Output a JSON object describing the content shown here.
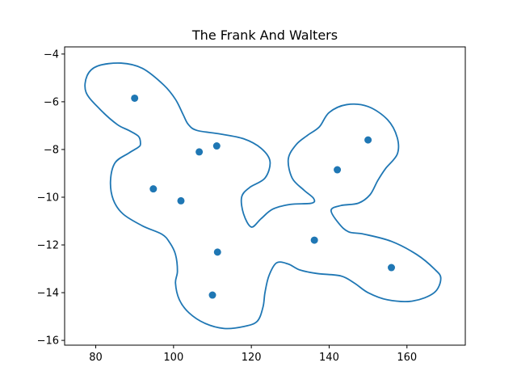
{
  "chart_data": {
    "type": "scatter",
    "title": "The Frank And Walters",
    "xlabel": "",
    "ylabel": "",
    "xlim": [
      72,
      175
    ],
    "ylim": [
      -16.2,
      -3.7
    ],
    "xticks": [
      80,
      100,
      120,
      140,
      160
    ],
    "yticks": [
      -16,
      -14,
      -12,
      -10,
      -8,
      -6,
      -4
    ],
    "xtick_labels": [
      "80",
      "100",
      "120",
      "140",
      "160"
    ],
    "ytick_labels": [
      "−16",
      "−14",
      "−12",
      "−10",
      "−8",
      "−6",
      "−4"
    ],
    "grid": false,
    "color": "#1f77b4",
    "points": [
      {
        "x": 90.0,
        "y": -5.85
      },
      {
        "x": 106.6,
        "y": -8.1
      },
      {
        "x": 111.1,
        "y": -7.85
      },
      {
        "x": 94.8,
        "y": -9.65
      },
      {
        "x": 101.9,
        "y": -10.15
      },
      {
        "x": 111.3,
        "y": -12.3
      },
      {
        "x": 110.0,
        "y": -14.1
      },
      {
        "x": 136.2,
        "y": -11.8
      },
      {
        "x": 142.1,
        "y": -8.85
      },
      {
        "x": 150.0,
        "y": -7.6
      },
      {
        "x": 156.0,
        "y": -12.95
      }
    ],
    "boundary": [
      [
        86.5,
        -4.38
      ],
      [
        92.0,
        -4.6
      ],
      [
        97.5,
        -5.3
      ],
      [
        100.5,
        -5.9
      ],
      [
        102.5,
        -6.55
      ],
      [
        103.8,
        -6.95
      ],
      [
        106.0,
        -7.2
      ],
      [
        112.0,
        -7.35
      ],
      [
        118.0,
        -7.55
      ],
      [
        122.5,
        -7.95
      ],
      [
        124.8,
        -8.5
      ],
      [
        123.5,
        -9.2
      ],
      [
        119.5,
        -9.6
      ],
      [
        117.5,
        -10.0
      ],
      [
        118.0,
        -10.7
      ],
      [
        120.0,
        -11.25
      ],
      [
        122.5,
        -10.9
      ],
      [
        125.5,
        -10.5
      ],
      [
        130.0,
        -10.3
      ],
      [
        135.5,
        -10.25
      ],
      [
        136.0,
        -10.05
      ],
      [
        133.5,
        -9.7
      ],
      [
        130.5,
        -9.2
      ],
      [
        129.5,
        -8.4
      ],
      [
        131.5,
        -7.8
      ],
      [
        134.5,
        -7.4
      ],
      [
        137.5,
        -7.05
      ],
      [
        140.0,
        -6.45
      ],
      [
        144.5,
        -6.12
      ],
      [
        150.0,
        -6.2
      ],
      [
        155.0,
        -6.75
      ],
      [
        157.5,
        -7.5
      ],
      [
        157.5,
        -8.2
      ],
      [
        154.5,
        -8.8
      ],
      [
        152.5,
        -9.3
      ],
      [
        150.5,
        -9.9
      ],
      [
        147.5,
        -10.25
      ],
      [
        143.0,
        -10.35
      ],
      [
        140.5,
        -10.55
      ],
      [
        142.5,
        -11.1
      ],
      [
        145.0,
        -11.45
      ],
      [
        149.0,
        -11.55
      ],
      [
        156.0,
        -11.85
      ],
      [
        162.5,
        -12.4
      ],
      [
        167.0,
        -13.0
      ],
      [
        168.7,
        -13.4
      ],
      [
        167.0,
        -14.0
      ],
      [
        161.5,
        -14.35
      ],
      [
        155.0,
        -14.3
      ],
      [
        150.0,
        -14.0
      ],
      [
        146.5,
        -13.6
      ],
      [
        143.0,
        -13.3
      ],
      [
        137.0,
        -13.2
      ],
      [
        132.5,
        -13.05
      ],
      [
        129.5,
        -12.8
      ],
      [
        126.5,
        -12.75
      ],
      [
        124.5,
        -13.3
      ],
      [
        123.5,
        -14.0
      ],
      [
        123.0,
        -14.6
      ],
      [
        121.5,
        -15.2
      ],
      [
        118.0,
        -15.42
      ],
      [
        113.0,
        -15.5
      ],
      [
        108.0,
        -15.28
      ],
      [
        104.0,
        -14.85
      ],
      [
        101.5,
        -14.3
      ],
      [
        100.5,
        -13.6
      ],
      [
        101.0,
        -13.1
      ],
      [
        100.5,
        -12.4
      ],
      [
        99.0,
        -11.9
      ],
      [
        97.0,
        -11.55
      ],
      [
        92.0,
        -11.2
      ],
      [
        87.0,
        -10.7
      ],
      [
        84.5,
        -10.1
      ],
      [
        83.8,
        -9.3
      ],
      [
        85.0,
        -8.55
      ],
      [
        88.5,
        -8.15
      ],
      [
        91.0,
        -7.9
      ],
      [
        91.5,
        -7.75
      ],
      [
        91.0,
        -7.45
      ],
      [
        88.5,
        -7.2
      ],
      [
        85.5,
        -6.95
      ],
      [
        81.0,
        -6.3
      ],
      [
        77.5,
        -5.6
      ],
      [
        77.8,
        -4.9
      ],
      [
        80.5,
        -4.5
      ]
    ]
  }
}
